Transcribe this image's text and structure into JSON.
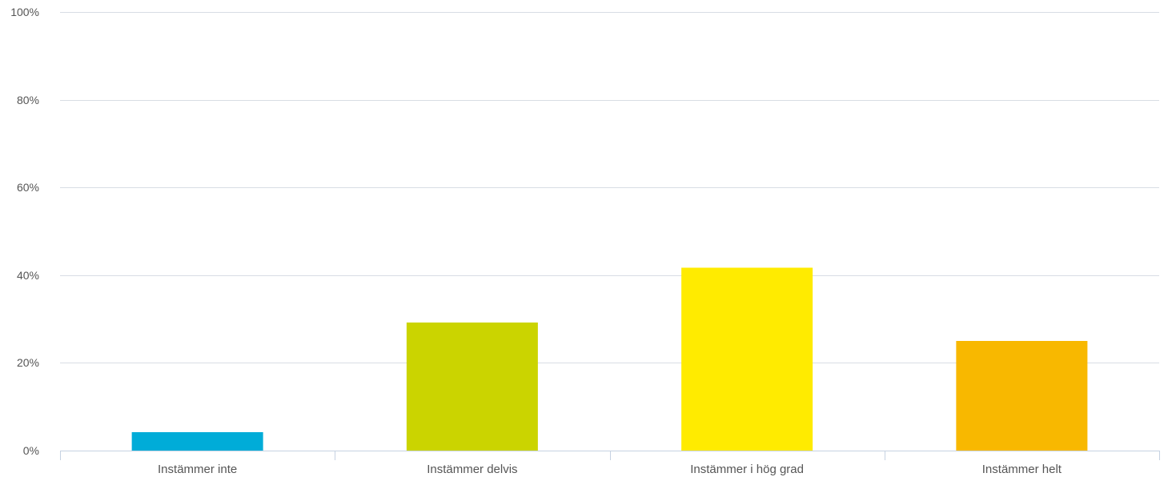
{
  "chart_data": {
    "type": "bar",
    "title": "",
    "xlabel": "",
    "ylabel": "",
    "categories": [
      "Instämmer inte",
      "Instämmer delvis",
      "Instämmer i hög grad",
      "Instämmer helt"
    ],
    "values": [
      4.2,
      29.2,
      41.7,
      25.0
    ],
    "value_unit": "percent",
    "colors": [
      "#00acd8",
      "#cbd400",
      "#ffeb00",
      "#f8b800"
    ],
    "ylim": [
      0,
      100
    ],
    "yticks": [
      "0%",
      "20%",
      "40%",
      "60%",
      "80%",
      "100%"
    ],
    "ytick_values": [
      0,
      20,
      40,
      60,
      80,
      100
    ],
    "grid": true,
    "gridline_color": "#d8dde4",
    "axis_color": "#c6d2e2",
    "label_color": "#555555",
    "legend": "none"
  }
}
